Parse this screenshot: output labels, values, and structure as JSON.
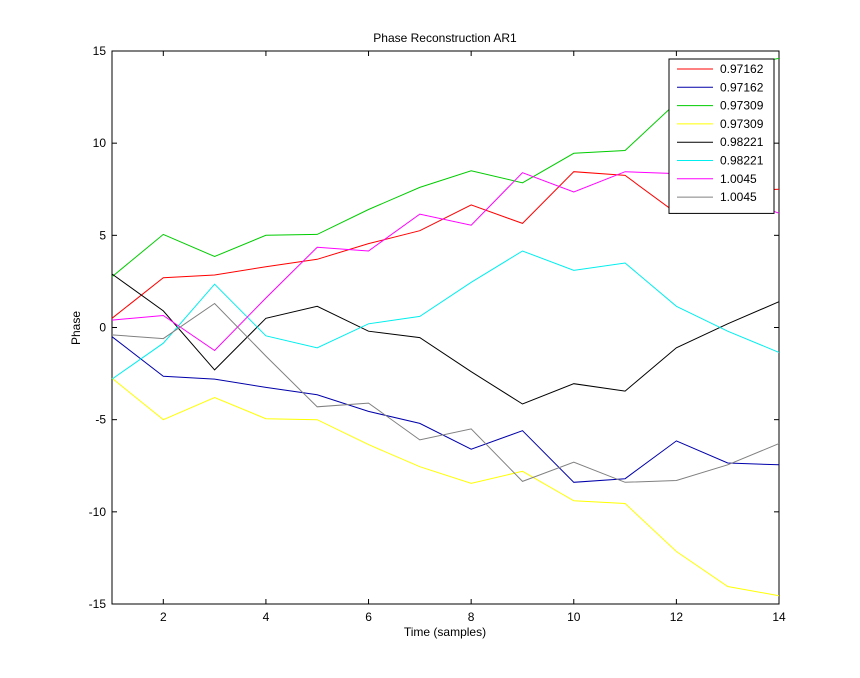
{
  "chart_data": {
    "type": "line",
    "title": "Phase Reconstruction AR1",
    "xlabel": "Time (samples)",
    "ylabel": "Phase",
    "xlim": [
      1,
      14
    ],
    "ylim": [
      -15,
      15
    ],
    "xticks": [
      2,
      4,
      6,
      8,
      10,
      12,
      14
    ],
    "yticks": [
      -15,
      -10,
      -5,
      0,
      5,
      10,
      15
    ],
    "grid": false,
    "legend_position": "top-right",
    "x": [
      1,
      2,
      3,
      4,
      5,
      6,
      7,
      8,
      9,
      10,
      11,
      12,
      13,
      14
    ],
    "series": [
      {
        "name": "0.97162",
        "color": "#ff0000",
        "values": [
          0.5,
          2.7,
          2.85,
          3.3,
          3.7,
          4.55,
          5.25,
          6.65,
          5.65,
          8.45,
          8.25,
          6.2,
          7.4,
          7.5
        ]
      },
      {
        "name": "0.97162",
        "color": "#0000aa",
        "values": [
          -0.5,
          -2.65,
          -2.8,
          -3.25,
          -3.65,
          -4.55,
          -5.2,
          -6.6,
          -5.6,
          -8.4,
          -8.2,
          -6.15,
          -7.35,
          -7.45
        ]
      },
      {
        "name": "0.97309",
        "color": "#00cc00",
        "values": [
          2.75,
          5.05,
          3.85,
          5.0,
          5.05,
          6.4,
          7.6,
          8.5,
          7.85,
          9.45,
          9.6,
          12.2,
          14.1,
          14.6
        ]
      },
      {
        "name": "0.97309",
        "color": "#ffff00",
        "values": [
          -2.75,
          -5.0,
          -3.8,
          -4.95,
          -5.0,
          -6.35,
          -7.55,
          -8.45,
          -7.8,
          -9.4,
          -9.55,
          -12.15,
          -14.05,
          -14.55
        ]
      },
      {
        "name": "0.98221",
        "color": "#000000",
        "values": [
          2.9,
          0.9,
          -2.3,
          0.5,
          1.15,
          -0.2,
          -0.55,
          -2.4,
          -4.15,
          -3.05,
          -3.45,
          -1.1,
          0.2,
          1.4
        ]
      },
      {
        "name": "0.98221",
        "color": "#00eeee",
        "values": [
          -2.8,
          -0.85,
          2.35,
          -0.45,
          -1.1,
          0.2,
          0.6,
          2.45,
          4.15,
          3.1,
          3.5,
          1.15,
          -0.2,
          -1.35
        ]
      },
      {
        "name": "1.0045",
        "color": "#ff00ff",
        "values": [
          0.4,
          0.65,
          -1.25,
          1.6,
          4.35,
          4.15,
          6.15,
          5.55,
          8.4,
          7.35,
          8.45,
          8.35,
          7.2,
          6.2
        ]
      },
      {
        "name": "1.0045",
        "color": "#808080",
        "values": [
          -0.4,
          -0.6,
          1.3,
          -1.55,
          -4.3,
          -4.1,
          -6.1,
          -5.5,
          -8.35,
          -7.3,
          -8.4,
          -8.3,
          -7.45,
          -6.3
        ]
      }
    ]
  }
}
